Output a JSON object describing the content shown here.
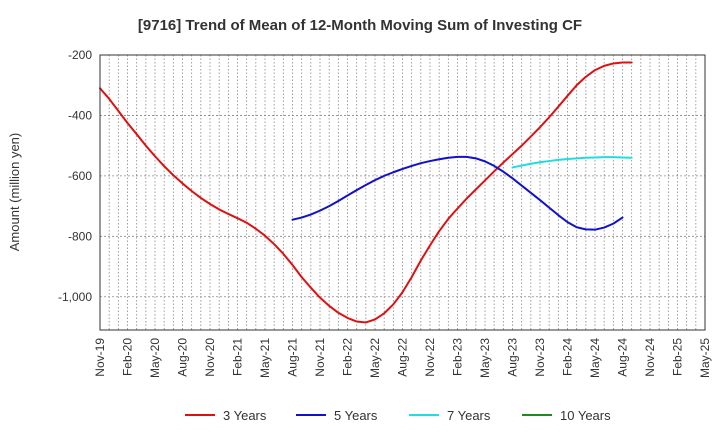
{
  "chart_data": {
    "type": "line",
    "title": "[9716]  Trend of Mean of 12-Month Moving Sum of Investing CF",
    "ylabel": "Amount (million yen)",
    "xlabel": "",
    "ylim": [
      -1110,
      -200
    ],
    "yticks": [
      -200,
      -400,
      -600,
      -800,
      -1000
    ],
    "ytick_labels": [
      "-200",
      "-400",
      "-600",
      "-800",
      "-1,000"
    ],
    "x_start": "Nov-19",
    "num_months": 67,
    "xtick_labels": [
      "Nov-19",
      "Feb-20",
      "May-20",
      "Aug-20",
      "Nov-20",
      "Feb-21",
      "May-21",
      "Aug-21",
      "Nov-21",
      "Feb-22",
      "May-22",
      "Aug-22",
      "Nov-22",
      "Feb-23",
      "May-23",
      "Aug-23",
      "Nov-23",
      "Feb-24",
      "May-24",
      "Aug-24",
      "Nov-24",
      "Feb-25",
      "May-25"
    ],
    "grid": true,
    "legend_position": "bottom",
    "series": [
      {
        "name": "3 Years",
        "color": "#dd1111",
        "start_index": 0,
        "values": [
          -310,
          -345,
          -385,
          -425,
          -462,
          -500,
          -535,
          -568,
          -598,
          -625,
          -650,
          -673,
          -693,
          -711,
          -726,
          -740,
          -755,
          -775,
          -798,
          -826,
          -858,
          -895,
          -935,
          -970,
          -1003,
          -1030,
          -1053,
          -1070,
          -1082,
          -1085,
          -1075,
          -1055,
          -1025,
          -985,
          -935,
          -880,
          -830,
          -783,
          -742,
          -708,
          -675,
          -645,
          -615,
          -585,
          -556,
          -528,
          -500,
          -470,
          -439,
          -406,
          -371,
          -335,
          -300,
          -272,
          -250,
          -236,
          -228,
          -225,
          -225
        ]
      },
      {
        "name": "5 Years",
        "color": "#1111cc",
        "start_index": 21,
        "values": [
          -745,
          -738,
          -728,
          -715,
          -700,
          -683,
          -665,
          -647,
          -630,
          -614,
          -600,
          -588,
          -577,
          -567,
          -558,
          -551,
          -545,
          -540,
          -537,
          -537,
          -542,
          -552,
          -567,
          -586,
          -608,
          -632,
          -656,
          -680,
          -705,
          -730,
          -753,
          -770,
          -777,
          -778,
          -771,
          -758,
          -738
        ]
      },
      {
        "name": "7 Years",
        "color": "#22dddd",
        "start_index": 45,
        "values": [
          -572,
          -566,
          -560,
          -555,
          -551,
          -547,
          -544,
          -542,
          -540,
          -539,
          -538,
          -538,
          -539,
          -540
        ]
      },
      {
        "name": "10 Years",
        "color": "#228822",
        "start_index": 0,
        "values": []
      }
    ]
  }
}
